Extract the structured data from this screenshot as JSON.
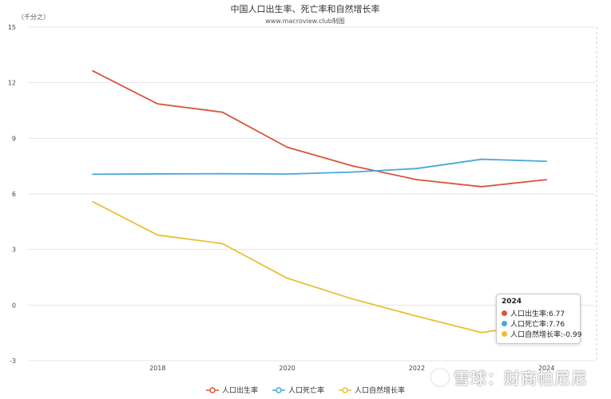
{
  "chart_data": {
    "type": "line",
    "title": "中国人口出生率、死亡率和自然增长率",
    "subtitle": "www.macroview.club制图",
    "ylabel": "（千分之）",
    "xlabel": "",
    "x": [
      2017,
      2018,
      2019,
      2020,
      2021,
      2022,
      2023,
      2024
    ],
    "x_ticks": [
      "2018",
      "2020",
      "2022",
      "2024"
    ],
    "ylim": [
      -3,
      15
    ],
    "y_ticks": [
      "-3",
      "0",
      "3",
      "6",
      "9",
      "12",
      "15"
    ],
    "grid": true,
    "legend_position": "bottom",
    "series": [
      {
        "name": "人口出生率",
        "color": "#d9543a",
        "values": [
          12.64,
          10.86,
          10.41,
          8.52,
          7.52,
          6.77,
          6.39,
          6.77
        ]
      },
      {
        "name": "人口死亡率",
        "color": "#4aa8d8",
        "values": [
          7.06,
          7.08,
          7.09,
          7.07,
          7.18,
          7.37,
          7.87,
          7.76
        ]
      },
      {
        "name": "人口自然增长率",
        "color": "#e8c034",
        "values": [
          5.58,
          3.78,
          3.32,
          1.45,
          0.34,
          -0.6,
          -1.48,
          -0.99
        ]
      }
    ]
  },
  "tooltip": {
    "title": "2024",
    "rows": [
      "人口出生率:6.77",
      "人口死亡率:7.76",
      "人口自然增长率:-0.99"
    ]
  },
  "watermark": "雪球：财商帕尼尼"
}
